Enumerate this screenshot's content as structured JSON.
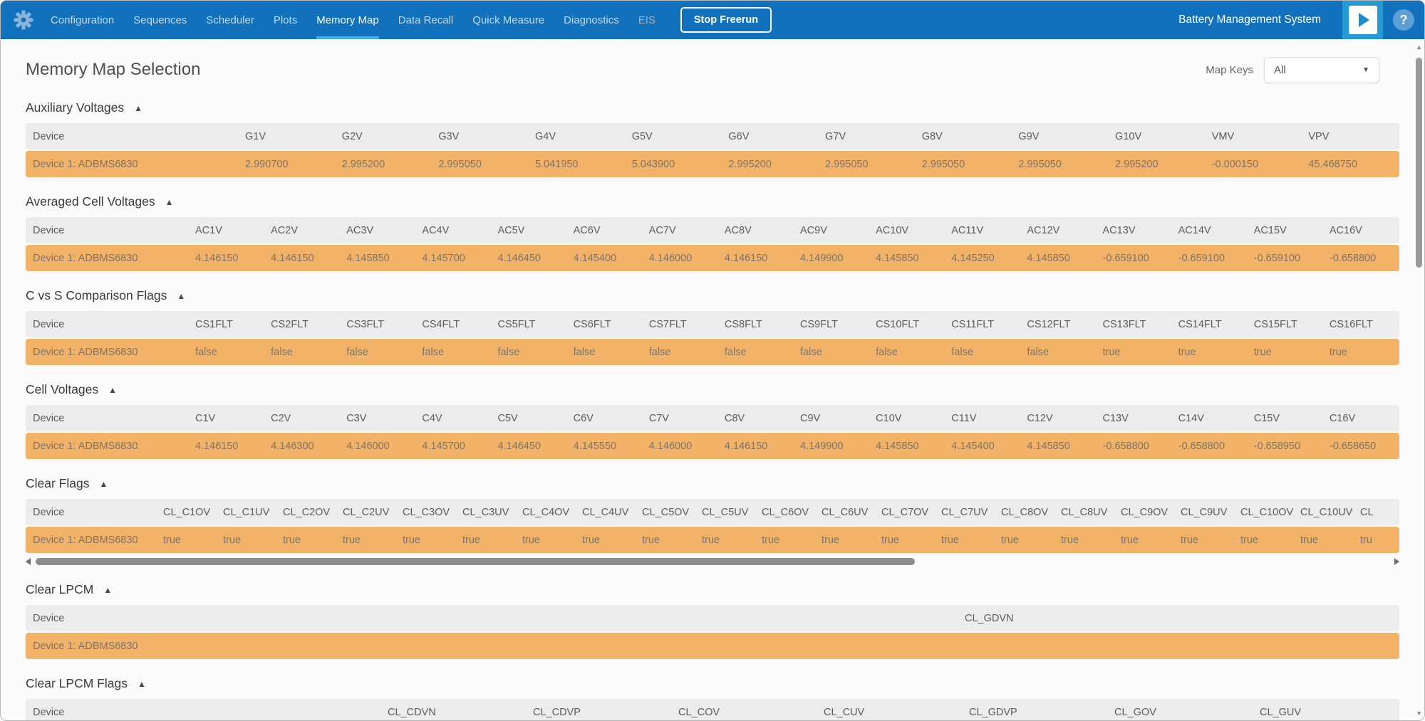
{
  "colors": {
    "navbar_blue": "#1171bc",
    "active_tab_underline": "#45aee0",
    "play_button_bg": "#259ad3",
    "row_orange": "#f2b369",
    "table_header_gray": "#ececec"
  },
  "navbar": {
    "items": [
      {
        "label": "Configuration"
      },
      {
        "label": "Sequences"
      },
      {
        "label": "Scheduler"
      },
      {
        "label": "Plots"
      },
      {
        "label": "Memory Map",
        "active": true
      },
      {
        "label": "Data Recall"
      },
      {
        "label": "Quick Measure"
      },
      {
        "label": "Diagnostics"
      },
      {
        "label": "EIS",
        "disabled": true
      }
    ],
    "stop_button_label": "Stop Freerun",
    "app_title": "Battery Management System",
    "help_glyph": "?"
  },
  "page": {
    "title": "Memory Map Selection",
    "map_keys_label": "Map Keys",
    "map_keys_value": "All"
  },
  "table": {
    "device_column": "Device",
    "collapse_icon": "▲"
  },
  "sections": [
    {
      "title": "Auxiliary Voltages",
      "columns": [
        "G1V",
        "G2V",
        "G3V",
        "G4V",
        "G5V",
        "G6V",
        "G7V",
        "G8V",
        "G9V",
        "G10V",
        "VMV",
        "VPV"
      ],
      "rows": [
        {
          "device": "Device 1: ADBMS6830",
          "values": [
            "2.990700",
            "2.995200",
            "2.995050",
            "5.041950",
            "5.043900",
            "2.995200",
            "2.995050",
            "2.995050",
            "2.995050",
            "2.995200",
            "-0.000150",
            "45.468750"
          ]
        }
      ]
    },
    {
      "title": "Averaged Cell Voltages",
      "columns": [
        "AC1V",
        "AC2V",
        "AC3V",
        "AC4V",
        "AC5V",
        "AC6V",
        "AC7V",
        "AC8V",
        "AC9V",
        "AC10V",
        "AC11V",
        "AC12V",
        "AC13V",
        "AC14V",
        "AC15V",
        "AC16V"
      ],
      "rows": [
        {
          "device": "Device 1: ADBMS6830",
          "values": [
            "4.146150",
            "4.146150",
            "4.145850",
            "4.145700",
            "4.146450",
            "4.145400",
            "4.146000",
            "4.146150",
            "4.149900",
            "4.145850",
            "4.145250",
            "4.145850",
            "-0.659100",
            "-0.659100",
            "-0.659100",
            "-0.658800"
          ]
        }
      ]
    },
    {
      "title": "C vs S Comparison Flags",
      "columns": [
        "CS1FLT",
        "CS2FLT",
        "CS3FLT",
        "CS4FLT",
        "CS5FLT",
        "CS6FLT",
        "CS7FLT",
        "CS8FLT",
        "CS9FLT",
        "CS10FLT",
        "CS11FLT",
        "CS12FLT",
        "CS13FLT",
        "CS14FLT",
        "CS15FLT",
        "CS16FLT"
      ],
      "rows": [
        {
          "device": "Device 1: ADBMS6830",
          "values": [
            "false",
            "false",
            "false",
            "false",
            "false",
            "false",
            "false",
            "false",
            "false",
            "false",
            "false",
            "false",
            "true",
            "true",
            "true",
            "true"
          ]
        }
      ]
    },
    {
      "title": "Cell Voltages",
      "columns": [
        "C1V",
        "C2V",
        "C3V",
        "C4V",
        "C5V",
        "C6V",
        "C7V",
        "C8V",
        "C9V",
        "C10V",
        "C11V",
        "C12V",
        "C13V",
        "C14V",
        "C15V",
        "C16V"
      ],
      "rows": [
        {
          "device": "Device 1: ADBMS6830",
          "values": [
            "4.146150",
            "4.146300",
            "4.146000",
            "4.145700",
            "4.146450",
            "4.145550",
            "4.146000",
            "4.146150",
            "4.149900",
            "4.145850",
            "4.145400",
            "4.145850",
            "-0.658800",
            "-0.658800",
            "-0.658950",
            "-0.658650"
          ]
        }
      ]
    },
    {
      "title": "Clear Flags",
      "columns": [
        "CL_C1OV",
        "CL_C1UV",
        "CL_C2OV",
        "CL_C2UV",
        "CL_C3OV",
        "CL_C3UV",
        "CL_C4OV",
        "CL_C4UV",
        "CL_C5OV",
        "CL_C5UV",
        "CL_C6OV",
        "CL_C6UV",
        "CL_C7OV",
        "CL_C7UV",
        "CL_C8OV",
        "CL_C8UV",
        "CL_C9OV",
        "CL_C9UV",
        "CL_C10OV",
        "CL_C10UV"
      ],
      "partial_column": "CL",
      "partial_value": "tru",
      "hscrollbar": true,
      "rows": [
        {
          "device": "Device 1: ADBMS6830",
          "values": [
            "true",
            "true",
            "true",
            "true",
            "true",
            "true",
            "true",
            "true",
            "true",
            "true",
            "true",
            "true",
            "true",
            "true",
            "true",
            "true",
            "true",
            "true",
            "true",
            "true"
          ]
        }
      ]
    },
    {
      "title": "Clear LPCM",
      "columns": [
        "CL_GDVN"
      ],
      "rows": [
        {
          "device": "Device 1: ADBMS6830",
          "values": [
            ""
          ]
        }
      ]
    },
    {
      "title": "Clear LPCM Flags",
      "columns": [
        "CL_CDVN",
        "CL_CDVP",
        "CL_COV",
        "CL_CUV",
        "CL_GDVP",
        "CL_GOV",
        "CL_GUV"
      ],
      "rows": [
        {
          "device": "",
          "values": [
            "",
            "",
            "",
            "",
            "",
            "",
            ""
          ]
        }
      ]
    }
  ]
}
